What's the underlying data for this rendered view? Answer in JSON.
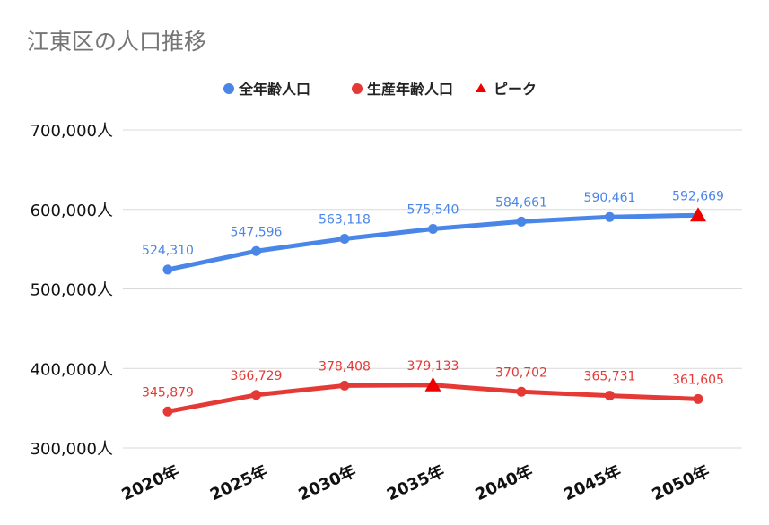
{
  "chart_data": {
    "type": "line",
    "title": "江東区の人口推移",
    "categories": [
      "2020年",
      "2025年",
      "2030年",
      "2035年",
      "2040年",
      "2045年",
      "2050年"
    ],
    "series": [
      {
        "name": "全年齢人口",
        "color": "#4a86e8",
        "values": [
          524310,
          547596,
          563118,
          575540,
          584661,
          590461,
          592669
        ],
        "labels": [
          "524,310",
          "547,596",
          "563,118",
          "575,540",
          "584,661",
          "590,461",
          "592,669"
        ],
        "peak_index": 6
      },
      {
        "name": "生産年齢人口",
        "color": "#e53935",
        "values": [
          345879,
          366729,
          378408,
          379133,
          370702,
          365731,
          361605
        ],
        "labels": [
          "345,879",
          "366,729",
          "378,408",
          "379,133",
          "370,702",
          "365,731",
          "361,605"
        ],
        "peak_index": 3
      }
    ],
    "peak_legend": "ピーク",
    "peak_color": "#ee0000",
    "ylim": [
      300000,
      700000
    ],
    "yticks": [
      300000,
      400000,
      500000,
      600000,
      700000
    ],
    "ytick_labels": [
      "300,000人",
      "400,000人",
      "500,000人",
      "600,000人",
      "700,000人"
    ],
    "grid": true,
    "legend_position": "top-center"
  }
}
